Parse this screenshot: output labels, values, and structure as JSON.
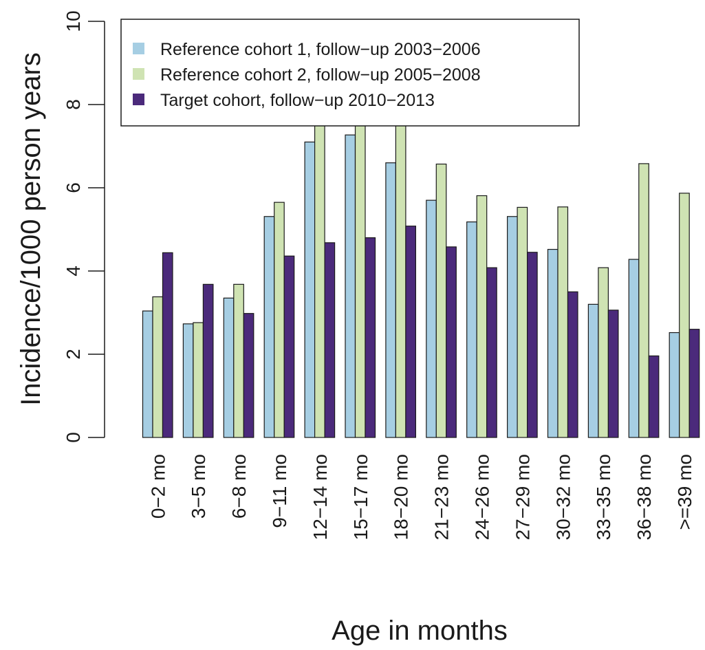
{
  "chart_data": {
    "type": "bar",
    "title": "",
    "xlabel": "Age in months",
    "ylabel": "Incidence/1000 person years",
    "ylim": [
      0,
      10
    ],
    "yticks": [
      "0",
      "2",
      "4",
      "6",
      "8",
      "10"
    ],
    "yticks_values": [
      0,
      2,
      4,
      6,
      8,
      10
    ],
    "grid": false,
    "legend_position": "top-left",
    "categories": [
      "0−2 mo",
      "3−5 mo",
      "6−8 mo",
      "9−11 mo",
      "12−14 mo",
      "15−17 mo",
      "18−20 mo",
      "21−23 mo",
      "24−26 mo",
      "27−29 mo",
      "30−32 mo",
      "33−35 mo",
      "36−38 mo",
      ">=39 mo"
    ],
    "series": [
      {
        "name": "Reference cohort 1, follow−up 2003−2006",
        "color": "#a6cee3",
        "values": [
          3.04,
          2.73,
          3.35,
          5.31,
          7.1,
          7.27,
          6.6,
          5.7,
          5.18,
          5.31,
          4.52,
          3.2,
          4.28,
          2.52
        ]
      },
      {
        "name": "Reference cohort 2, follow−up 2005−2008",
        "color": "#cfe3b3",
        "values": [
          3.38,
          2.76,
          3.68,
          5.65,
          7.5,
          7.63,
          7.73,
          6.57,
          5.81,
          5.53,
          5.54,
          4.08,
          6.58,
          5.87
        ]
      },
      {
        "name": "Target cohort, follow−up 2010−2013",
        "color": "#4b2a7b",
        "values": [
          4.44,
          3.68,
          2.98,
          4.36,
          4.68,
          4.8,
          5.08,
          4.58,
          4.08,
          4.45,
          3.5,
          3.06,
          1.96,
          2.6
        ]
      }
    ]
  }
}
